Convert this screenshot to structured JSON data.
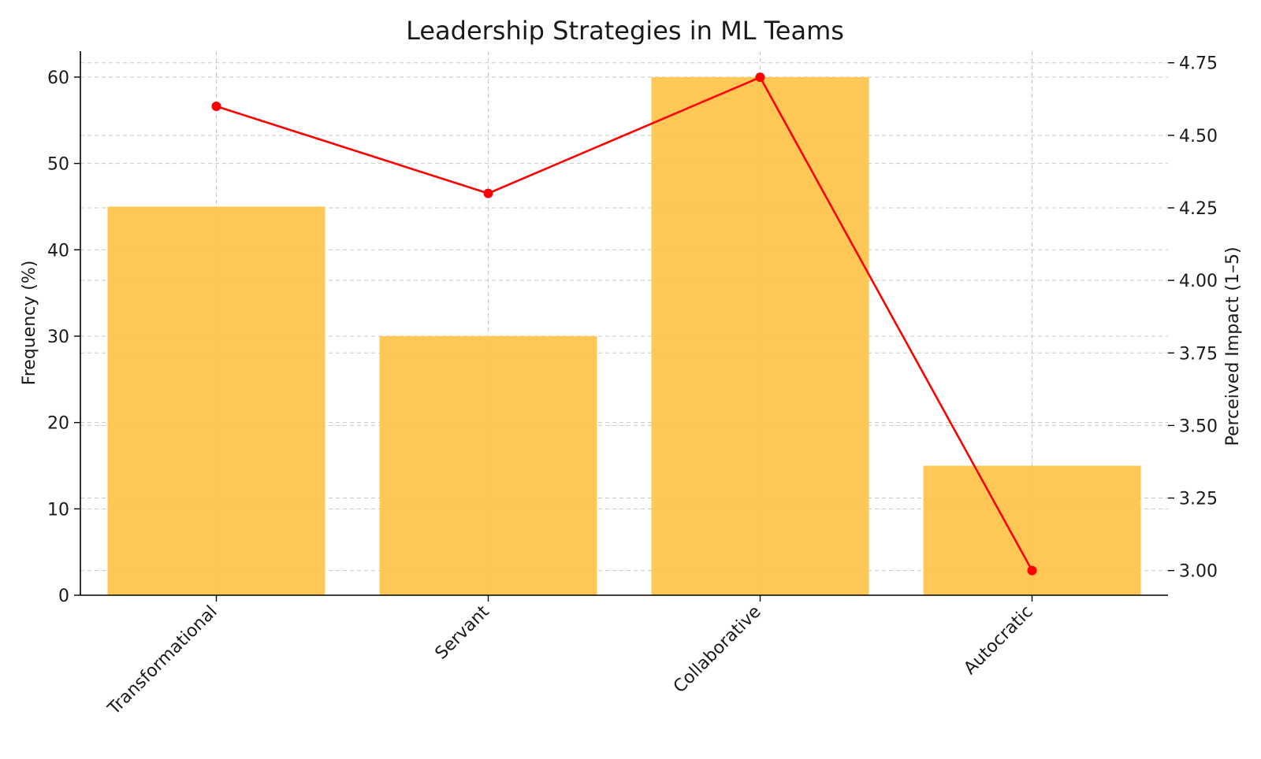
{
  "chart_data": {
    "type": "bar",
    "title": "Leadership Strategies in ML Teams",
    "categories": [
      "Transformational",
      "Servant",
      "Collaborative",
      "Autocratic"
    ],
    "series": [
      {
        "name": "Frequency (%)",
        "type": "bar",
        "axis": "left",
        "values": [
          45,
          30,
          60,
          15
        ],
        "color": "#ffc54d"
      },
      {
        "name": "Perceived Impact (1–5)",
        "type": "line",
        "axis": "right",
        "values": [
          4.6,
          4.3,
          4.7,
          3.0
        ],
        "color": "#ff0000"
      }
    ],
    "ylabel": "Frequency (%)",
    "ylim": [
      0,
      63
    ],
    "yticks": [
      0,
      10,
      20,
      30,
      40,
      50,
      60
    ],
    "y2label": "Perceived Impact (1–5)",
    "y2lim": [
      2.915,
      4.79
    ],
    "y2ticks": [
      "3.00",
      "3.25",
      "3.50",
      "3.75",
      "4.00",
      "4.25",
      "4.50",
      "4.75"
    ],
    "grid": true,
    "legend": "none"
  }
}
